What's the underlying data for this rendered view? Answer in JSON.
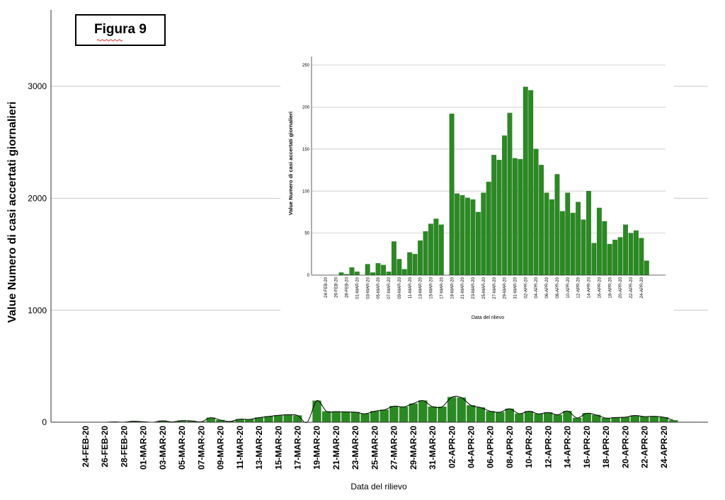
{
  "figure_label": "Figura 9",
  "colors": {
    "bar": "#2a8a22",
    "bar_stroke": "#1d6318",
    "grid": "#c8c8c8",
    "axis": "#333333",
    "smooth_line": "#000000"
  },
  "chart_data": [
    {
      "type": "bar",
      "overlay": "smoothed line",
      "xlabel": "Data del rilievo",
      "ylabel": "Value Numero di casi accertati giornalieri",
      "ylim": [
        0,
        3000
      ],
      "yticks": [
        0,
        1000,
        2000,
        3000
      ],
      "grid": true,
      "tick_labels": [
        "24-FEB-20",
        "26-FEB-20",
        "28-FEB-20",
        "01-MAR-20",
        "03-MAR-20",
        "05-MAR-20",
        "07-MAR-20",
        "09-MAR-20",
        "11-MAR-20",
        "13-MAR-20",
        "15-MAR-20",
        "17-MAR-20",
        "19-MAR-20",
        "21-MAR-20",
        "23-MAR-20",
        "25-MAR-20",
        "27-MAR-20",
        "29-MAR-20",
        "31-MAR-20",
        "02-APR-20",
        "04-APR-20",
        "06-APR-20",
        "08-APR-20",
        "10-APR-20",
        "12-APR-20",
        "14-APR-20",
        "16-APR-20",
        "18-APR-20",
        "20-APR-20",
        "22-APR-20",
        "24-APR-20"
      ],
      "categories": [
        "24-FEB-20",
        "25-FEB-20",
        "26-FEB-20",
        "27-FEB-20",
        "28-FEB-20",
        "29-FEB-20",
        "01-MAR-20",
        "02-MAR-20",
        "03-MAR-20",
        "04-MAR-20",
        "05-MAR-20",
        "06-MAR-20",
        "07-MAR-20",
        "08-MAR-20",
        "09-MAR-20",
        "10-MAR-20",
        "11-MAR-20",
        "12-MAR-20",
        "13-MAR-20",
        "14-MAR-20",
        "15-MAR-20",
        "16-MAR-20",
        "17-MAR-20",
        "18-MAR-20",
        "19-MAR-20",
        "20-MAR-20",
        "21-MAR-20",
        "22-MAR-20",
        "23-MAR-20",
        "24-MAR-20",
        "25-MAR-20",
        "26-MAR-20",
        "27-MAR-20",
        "28-MAR-20",
        "29-MAR-20",
        "30-MAR-20",
        "31-MAR-20",
        "01-APR-20",
        "02-APR-20",
        "03-APR-20",
        "04-APR-20",
        "05-APR-20",
        "06-APR-20",
        "07-APR-20",
        "08-APR-20",
        "09-APR-20",
        "10-APR-20",
        "11-APR-20",
        "12-APR-20",
        "13-APR-20",
        "14-APR-20",
        "15-APR-20",
        "16-APR-20",
        "17-APR-20",
        "18-APR-20",
        "19-APR-20",
        "20-APR-20",
        "21-APR-20",
        "22-APR-20",
        "23-APR-20",
        "24-APR-20",
        "25-APR-20"
      ],
      "values": [
        0,
        0,
        0,
        3,
        1,
        9,
        4,
        0,
        13,
        3,
        14,
        12,
        4,
        40,
        19,
        7,
        27,
        25,
        41,
        52,
        61,
        67,
        60,
        0,
        192,
        97,
        95,
        92,
        90,
        75,
        98,
        111,
        143,
        137,
        166,
        193,
        139,
        138,
        224,
        220,
        150,
        131,
        98,
        90,
        120,
        76,
        98,
        74,
        87,
        66,
        100,
        38,
        80,
        64,
        37,
        42,
        45,
        60,
        50,
        53,
        44,
        17
      ]
    },
    {
      "type": "bar",
      "role": "inset",
      "xlabel": "Data del rilievo",
      "ylabel": "Value Numero di casi accertati giornalieri",
      "ylim": [
        0,
        250
      ],
      "yticks": [
        0,
        50,
        100,
        150,
        200,
        250
      ],
      "grid": true,
      "tick_labels": [
        "24-FEB-20",
        "26-FEB-20",
        "28-FEB-20",
        "01-MAR-20",
        "03-MAR-20",
        "05-MAR-20",
        "07-MAR-20",
        "09-MAR-20",
        "11-MAR-20",
        "13-MAR-20",
        "15-MAR-20",
        "17-MAR-20",
        "19-MAR-20",
        "21-MAR-20",
        "23-MAR-20",
        "25-MAR-20",
        "27-MAR-20",
        "29-MAR-20",
        "31-MAR-20",
        "02-APR-20",
        "04-APR-20",
        "06-APR-20",
        "08-APR-20",
        "10-APR-20",
        "12-APR-20",
        "14-APR-20",
        "16-APR-20",
        "18-APR-20",
        "20-APR-20",
        "22-APR-20",
        "24-APR-20"
      ],
      "values": [
        0,
        0,
        0,
        3,
        1,
        9,
        4,
        0,
        13,
        3,
        14,
        12,
        4,
        40,
        19,
        7,
        27,
        25,
        41,
        52,
        61,
        67,
        60,
        0,
        192,
        97,
        95,
        92,
        90,
        75,
        98,
        111,
        143,
        137,
        166,
        193,
        139,
        138,
        224,
        220,
        150,
        131,
        98,
        90,
        120,
        76,
        98,
        74,
        87,
        66,
        100,
        38,
        80,
        64,
        37,
        42,
        45,
        60,
        50,
        53,
        44,
        17
      ]
    }
  ]
}
